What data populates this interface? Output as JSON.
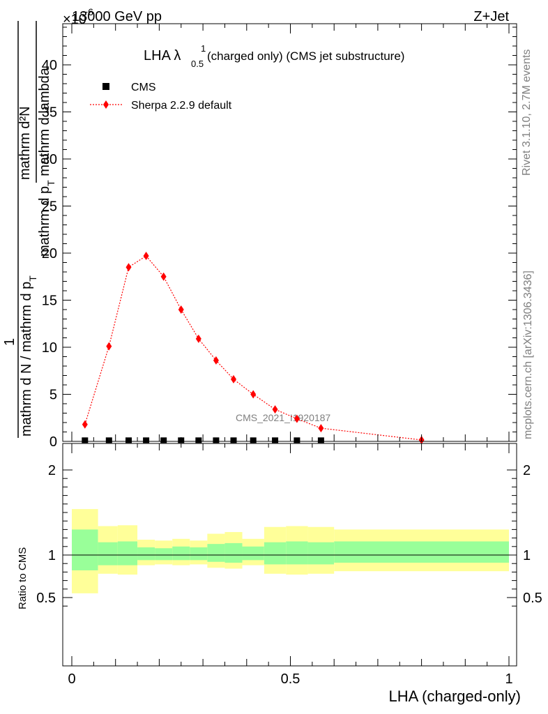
{
  "header": {
    "left": "13000 GeV pp",
    "right": "Z+Jet",
    "exponent": "×10",
    "exponent_power": "−6"
  },
  "side_labels": {
    "rivet": "Rivet 3.1.10,  2.7M events",
    "mcplots": "mcplots.cern.ch [arXiv:1306.3436]"
  },
  "watermark": "CMS_2021_I1920187",
  "colors": {
    "mc": "#ff0000",
    "data": "#000000",
    "band_inner": "#99ff99",
    "band_outer": "#ffff99"
  },
  "chart_data": [
    {
      "type": "line",
      "title": "LHA λ",
      "title_sup": "1",
      "title_sub": "0.5",
      "title_rest": " (charged only) (CMS jet substructure)",
      "ylabel": {
        "numerator": "mathrm d²N",
        "denominator_1": "mathrm d p",
        "denominator_sub": "T",
        "denominator_2": " mathrm d lambda",
        "prefactor_num": "1",
        "prefactor_den_1": "mathrm d N / mathrm d p",
        "prefactor_den_sub": "T"
      },
      "xlim": [
        0,
        1
      ],
      "ylim": [
        0,
        44
      ],
      "y_scale_factor": "1e-6",
      "yticks": [
        0,
        5,
        10,
        15,
        20,
        25,
        30,
        35,
        40
      ],
      "legend_placement": "top-left",
      "series": [
        {
          "name": "CMS",
          "marker": "square",
          "x": [
            0.03,
            0.085,
            0.13,
            0.17,
            0.21,
            0.25,
            0.29,
            0.33,
            0.37,
            0.415,
            0.465,
            0.515,
            0.57
          ],
          "values": [
            0.05,
            0.05,
            0.05,
            0.05,
            0.05,
            0.05,
            0.05,
            0.05,
            0.05,
            0.05,
            0.05,
            0.05,
            0.05
          ]
        },
        {
          "name": "Sherpa 2.2.9 default",
          "marker": "diamond",
          "x": [
            0.03,
            0.085,
            0.13,
            0.17,
            0.21,
            0.25,
            0.29,
            0.33,
            0.37,
            0.415,
            0.465,
            0.515,
            0.57,
            0.8
          ],
          "values": [
            1.8,
            10.1,
            18.5,
            19.7,
            17.5,
            14.0,
            10.9,
            8.6,
            6.6,
            5.0,
            3.4,
            2.4,
            1.4,
            0.15
          ]
        }
      ]
    },
    {
      "type": "area",
      "ylabel": "Ratio to CMS",
      "xlabel": "LHA (charged-only)",
      "xlim": [
        0,
        1
      ],
      "ylim": [
        0.35,
        2.25
      ],
      "yticks": [
        0.5,
        1,
        2
      ],
      "xticks": [
        0,
        0.5,
        1
      ],
      "ratio_line": 1,
      "bins": [
        {
          "lo": 0.0,
          "hi": 0.06,
          "inner": [
            0.82,
            1.3
          ],
          "outer": [
            0.55,
            1.54
          ]
        },
        {
          "lo": 0.06,
          "hi": 0.105,
          "inner": [
            0.88,
            1.15
          ],
          "outer": [
            0.78,
            1.34
          ]
        },
        {
          "lo": 0.105,
          "hi": 0.15,
          "inner": [
            0.88,
            1.16
          ],
          "outer": [
            0.77,
            1.35
          ]
        },
        {
          "lo": 0.15,
          "hi": 0.19,
          "inner": [
            0.94,
            1.09
          ],
          "outer": [
            0.88,
            1.18
          ]
        },
        {
          "lo": 0.19,
          "hi": 0.23,
          "inner": [
            0.94,
            1.08
          ],
          "outer": [
            0.89,
            1.17
          ]
        },
        {
          "lo": 0.23,
          "hi": 0.27,
          "inner": [
            0.94,
            1.1
          ],
          "outer": [
            0.88,
            1.19
          ]
        },
        {
          "lo": 0.27,
          "hi": 0.31,
          "inner": [
            0.94,
            1.09
          ],
          "outer": [
            0.89,
            1.17
          ]
        },
        {
          "lo": 0.31,
          "hi": 0.35,
          "inner": [
            0.92,
            1.13
          ],
          "outer": [
            0.85,
            1.25
          ]
        },
        {
          "lo": 0.35,
          "hi": 0.39,
          "inner": [
            0.91,
            1.14
          ],
          "outer": [
            0.84,
            1.27
          ]
        },
        {
          "lo": 0.39,
          "hi": 0.44,
          "inner": [
            0.94,
            1.1
          ],
          "outer": [
            0.88,
            1.19
          ]
        },
        {
          "lo": 0.44,
          "hi": 0.49,
          "inner": [
            0.89,
            1.15
          ],
          "outer": [
            0.78,
            1.33
          ]
        },
        {
          "lo": 0.49,
          "hi": 0.54,
          "inner": [
            0.89,
            1.16
          ],
          "outer": [
            0.77,
            1.34
          ]
        },
        {
          "lo": 0.54,
          "hi": 0.6,
          "inner": [
            0.89,
            1.15
          ],
          "outer": [
            0.78,
            1.33
          ]
        },
        {
          "lo": 0.6,
          "hi": 1.0,
          "inner": [
            0.91,
            1.16
          ],
          "outer": [
            0.81,
            1.3
          ]
        }
      ]
    }
  ]
}
